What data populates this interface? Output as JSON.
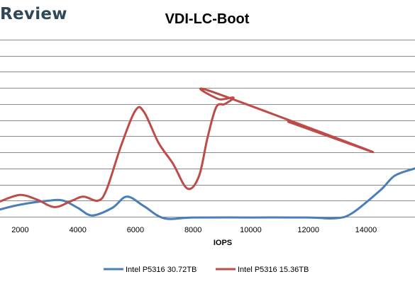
{
  "brand": {
    "text": "Review"
  },
  "chart_data": {
    "type": "line",
    "title": "VDI-LC-Boot",
    "xlabel": "IOPS",
    "ylabel": "",
    "xlim": [
      1300,
      15700
    ],
    "ylim": [
      0,
      11
    ],
    "x_ticks": [
      2000,
      4000,
      6000,
      8000,
      10000,
      12000,
      14000
    ],
    "x_tick_labels": [
      "2000",
      "4000",
      "6000",
      "8000",
      "10000",
      "12000",
      "14000"
    ],
    "grid": "horizontal",
    "legend_position": "bottom",
    "series": [
      {
        "name": "Intel P5316 30.72TB",
        "color": "#4a7ebb",
        "points": [
          [
            1300,
            0.45
          ],
          [
            2000,
            0.75
          ],
          [
            3000,
            1.0
          ],
          [
            3500,
            1.0
          ],
          [
            4000,
            0.55
          ],
          [
            4500,
            0.08
          ],
          [
            5200,
            0.55
          ],
          [
            5700,
            1.25
          ],
          [
            6300,
            0.65
          ],
          [
            7000,
            -0.1
          ],
          [
            8000,
            -0.05
          ],
          [
            10000,
            -0.05
          ],
          [
            12000,
            -0.05
          ],
          [
            12900,
            -0.1
          ],
          [
            13500,
            0.2
          ],
          [
            14500,
            1.65
          ],
          [
            15000,
            2.55
          ],
          [
            15700,
            3.0
          ]
        ]
      },
      {
        "name": "Intel P5316 15.36TB",
        "color": "#be4b48",
        "points": [
          [
            1300,
            0.95
          ],
          [
            2000,
            1.35
          ],
          [
            2600,
            1.05
          ],
          [
            3200,
            0.6
          ],
          [
            3800,
            1.0
          ],
          [
            4200,
            1.25
          ],
          [
            4700,
            1.0
          ],
          [
            5000,
            1.7
          ],
          [
            5500,
            4.4
          ],
          [
            6000,
            6.6
          ],
          [
            6300,
            6.5
          ],
          [
            6800,
            4.6
          ],
          [
            7300,
            3.3
          ],
          [
            7800,
            1.75
          ],
          [
            8200,
            2.5
          ],
          [
            8500,
            4.9
          ],
          [
            8800,
            6.8
          ],
          [
            9100,
            7.0
          ],
          [
            9400,
            7.4
          ],
          [
            8900,
            7.3
          ],
          [
            8600,
            7.8
          ],
          [
            14200,
            4.05
          ],
          [
            11300,
            5.9
          ],
          [
            14200,
            4.05
          ]
        ]
      }
    ]
  }
}
